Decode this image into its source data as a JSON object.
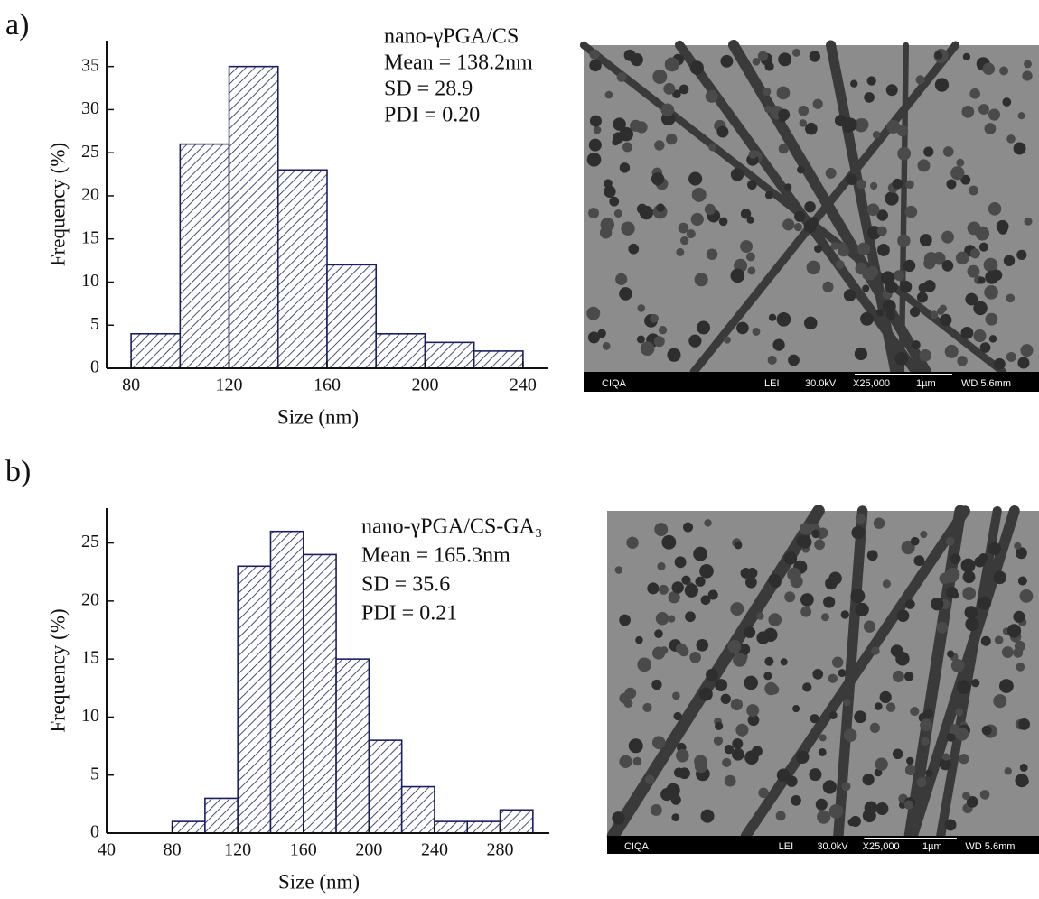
{
  "panel_labels": [
    "a)",
    "b)"
  ],
  "micrographs": [
    {
      "labels": [
        "CIQA",
        "LEI",
        "30.0kV",
        "X25,000",
        "1µm",
        "WD 5.6mm"
      ]
    },
    {
      "labels": [
        "CIQA",
        "LEI",
        "30.0kV",
        "X25,000",
        "1µm",
        "WD 5.6mm"
      ]
    }
  ],
  "chart_data": [
    {
      "type": "histogram",
      "xlabel": "Size (nm)",
      "ylabel": "Frequency (%)",
      "bins": [
        80,
        100,
        120,
        140,
        160,
        180,
        200,
        220,
        240
      ],
      "values": [
        4,
        26,
        35,
        23,
        12,
        4,
        3,
        2
      ],
      "color": "#1b1f5e",
      "hatch": true,
      "xlim": [
        70,
        250
      ],
      "xticks": [
        80,
        120,
        160,
        200,
        240
      ],
      "ylim": [
        0,
        38
      ],
      "yticks": [
        0,
        5,
        10,
        15,
        20,
        25,
        30,
        35
      ],
      "annotations": [
        "nano-γPGA/CS",
        "Mean = 138.2nm",
        "SD = 28.9",
        "PDI = 0.20"
      ]
    },
    {
      "type": "histogram",
      "xlabel": "Size (nm)",
      "ylabel": "Frequency (%)",
      "bins": [
        80,
        100,
        120,
        140,
        160,
        180,
        200,
        220,
        240,
        260,
        280,
        300
      ],
      "values": [
        1,
        3,
        23,
        26,
        24,
        15,
        8,
        4,
        1,
        1,
        2
      ],
      "color": "#1b1f5e",
      "hatch": true,
      "xlim": [
        40,
        310
      ],
      "xticks": [
        40,
        80,
        120,
        160,
        200,
        240,
        280
      ],
      "ylim": [
        0,
        28
      ],
      "yticks": [
        0,
        5,
        10,
        15,
        20,
        25
      ],
      "annotations": [
        "nano-γPGA/CS-GA₃",
        "Mean = 165.3nm",
        "SD = 35.6",
        "PDI = 0.21"
      ]
    }
  ]
}
